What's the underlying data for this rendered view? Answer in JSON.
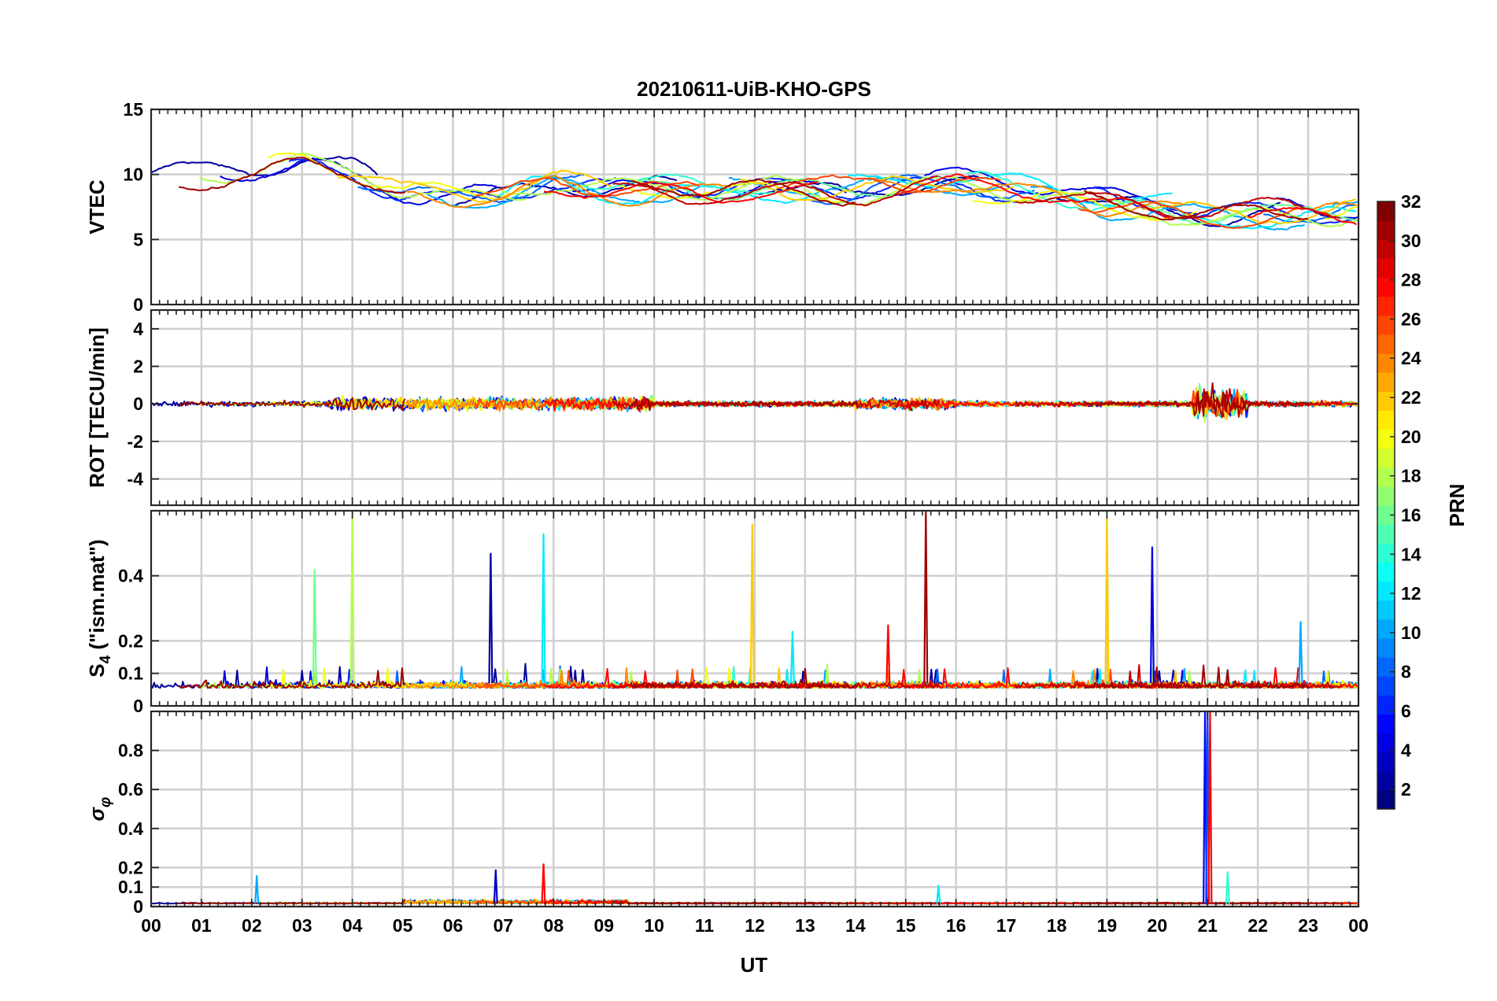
{
  "chart_data": {
    "type": "line",
    "title": "20210611-UiB-KHO-GPS",
    "xlabel": "UT",
    "x_tick_labels": [
      "00",
      "01",
      "02",
      "03",
      "04",
      "05",
      "06",
      "07",
      "08",
      "09",
      "10",
      "11",
      "12",
      "13",
      "14",
      "15",
      "16",
      "17",
      "18",
      "19",
      "20",
      "21",
      "22",
      "23",
      "00"
    ],
    "xlim_hours": [
      0,
      24
    ],
    "grid": true,
    "colormap": "jet",
    "colorbar": {
      "label": "PRN",
      "range": [
        1,
        32
      ],
      "tick_labels": [
        "2",
        "4",
        "6",
        "8",
        "10",
        "12",
        "14",
        "16",
        "18",
        "20",
        "22",
        "24",
        "26",
        "28",
        "30",
        "32"
      ],
      "placement": "right"
    },
    "panels": [
      {
        "id": "vtec",
        "ylabel": "VTEC",
        "ylim": [
          0,
          15
        ],
        "y_ticks": [
          0,
          5,
          10,
          15
        ],
        "y_tick_labels": [
          "0",
          "5",
          "10",
          "15"
        ],
        "baseline_profile": {
          "hours": [
            0,
            2,
            3,
            4,
            5,
            6,
            7,
            8,
            9,
            10,
            11,
            12,
            13,
            14,
            15,
            16,
            17,
            18,
            19,
            20,
            21,
            22,
            23,
            24
          ],
          "values": [
            9.8,
            10.3,
            10.8,
            10.2,
            8.7,
            8.3,
            8.6,
            9.5,
            9.0,
            8.9,
            8.8,
            8.9,
            8.8,
            8.7,
            9.2,
            9.4,
            8.8,
            8.5,
            7.6,
            7.3,
            6.8,
            7.0,
            7.1,
            7.2
          ]
        }
      },
      {
        "id": "rot",
        "ylabel": "ROT [TECU/min]",
        "ylim": [
          -5.4,
          5
        ],
        "y_ticks": [
          -4,
          -2,
          0,
          2,
          4
        ],
        "y_tick_labels": [
          "-4",
          "-2",
          "0",
          "2",
          "4"
        ],
        "baseline": 0
      },
      {
        "id": "s4",
        "ylabel_main": "S",
        "ylabel_sub": "4",
        "ylabel_tail": " (\"ism.mat\")",
        "ylim": [
          0,
          0.6
        ],
        "y_ticks": [
          0,
          0.1,
          0.2,
          0.4
        ],
        "y_tick_labels": [
          "0",
          "0.1",
          "0.2",
          "0.4"
        ],
        "baseline": 0.07,
        "spikes": [
          {
            "hour": 3.25,
            "value": 0.42,
            "prn": 16
          },
          {
            "hour": 4.0,
            "value": 0.6,
            "prn": 18
          },
          {
            "hour": 6.75,
            "value": 0.47,
            "prn": 2
          },
          {
            "hour": 7.8,
            "value": 0.53,
            "prn": 12
          },
          {
            "hour": 11.95,
            "value": 0.56,
            "prn": 22
          },
          {
            "hour": 12.75,
            "value": 0.23,
            "prn": 12
          },
          {
            "hour": 14.65,
            "value": 0.25,
            "prn": 28
          },
          {
            "hour": 15.4,
            "value": 0.6,
            "prn": 31
          },
          {
            "hour": 19.0,
            "value": 0.58,
            "prn": 22
          },
          {
            "hour": 19.9,
            "value": 0.49,
            "prn": 4
          },
          {
            "hour": 22.85,
            "value": 0.26,
            "prn": 10
          }
        ]
      },
      {
        "id": "sigma_phi",
        "ylabel": "σ",
        "ylabel_sub": "φ",
        "ylim": [
          0,
          1
        ],
        "y_ticks": [
          0,
          0.1,
          0.2,
          0.4,
          0.6,
          0.8
        ],
        "y_tick_labels": [
          "0",
          "0.1",
          "0.2",
          "0.4",
          "0.6",
          "0.8"
        ],
        "baseline": 0.015,
        "spikes": [
          {
            "hour": 20.95,
            "value": 1.0,
            "prn": 5
          },
          {
            "hour": 21.0,
            "value": 1.0,
            "prn": 7
          },
          {
            "hour": 21.05,
            "value": 1.0,
            "prn": 28
          },
          {
            "hour": 7.8,
            "value": 0.22,
            "prn": 28
          },
          {
            "hour": 6.85,
            "value": 0.19,
            "prn": 3
          },
          {
            "hour": 2.1,
            "value": 0.16,
            "prn": 10
          },
          {
            "hour": 21.4,
            "value": 0.18,
            "prn": 14
          },
          {
            "hour": 15.65,
            "value": 0.11,
            "prn": 12
          }
        ]
      }
    ],
    "series_prns": [
      2,
      4,
      6,
      8,
      10,
      12,
      14,
      16,
      18,
      20,
      22,
      24,
      26,
      28,
      30,
      31
    ]
  }
}
